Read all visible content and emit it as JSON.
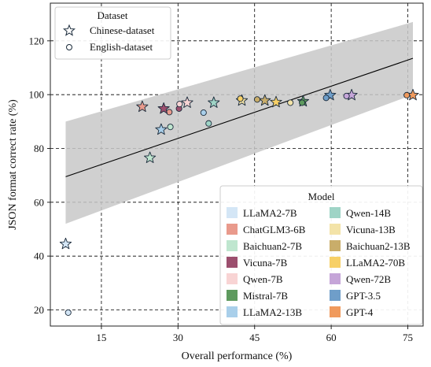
{
  "chart_data": {
    "type": "scatter",
    "xlabel": "Overall performance (%)",
    "ylabel": "JSON format correct rate (%)",
    "xlim": [
      5,
      78
    ],
    "ylim": [
      14,
      134
    ],
    "xticks": [
      15,
      30,
      45,
      60,
      75
    ],
    "yticks": [
      20,
      40,
      60,
      80,
      100,
      120
    ],
    "grid": true,
    "grid_style": "dashed",
    "dataset_legend": {
      "title": "Dataset",
      "placement": "top-left",
      "entries": [
        {
          "label": "Chinese-dataset",
          "marker": "star"
        },
        {
          "label": "English-dataset",
          "marker": "circle"
        }
      ]
    },
    "model_legend": {
      "title": "Model",
      "placement": "bottom-right",
      "columns": 2
    },
    "regression": {
      "line": [
        [
          8,
          69.5
        ],
        [
          76,
          113.5
        ]
      ],
      "band_upper": [
        [
          8,
          90
        ],
        [
          76,
          127
        ]
      ],
      "band_lower": [
        [
          8,
          52
        ],
        [
          76,
          100
        ]
      ],
      "line_color": "#000000",
      "band_color": "#c8c8c8"
    },
    "series": [
      {
        "name": "LLaMA2-7B",
        "color": "#d4e6f6",
        "points": [
          {
            "x": 8,
            "y": 44.5,
            "dataset": "Chinese-dataset"
          },
          {
            "x": 8.5,
            "y": 19,
            "dataset": "English-dataset"
          }
        ]
      },
      {
        "name": "ChatGLM3-6B",
        "color": "#e99a8c",
        "points": [
          {
            "x": 23,
            "y": 95.5,
            "dataset": "Chinese-dataset"
          },
          {
            "x": 28.3,
            "y": 93.5,
            "dataset": "English-dataset"
          }
        ]
      },
      {
        "name": "Baichuan2-7B",
        "color": "#bfe6cf",
        "points": [
          {
            "x": 24.5,
            "y": 76.5,
            "dataset": "Chinese-dataset"
          },
          {
            "x": 28.5,
            "y": 88,
            "dataset": "English-dataset"
          }
        ]
      },
      {
        "name": "Vicuna-7B",
        "color": "#9c4f6e",
        "points": [
          {
            "x": 27.2,
            "y": 94.8,
            "dataset": "Chinese-dataset"
          },
          {
            "x": 30.2,
            "y": 94.8,
            "dataset": "English-dataset"
          }
        ]
      },
      {
        "name": "Qwen-7B",
        "color": "#f8d4d4",
        "points": [
          {
            "x": 31.8,
            "y": 97,
            "dataset": "Chinese-dataset"
          },
          {
            "x": 30.3,
            "y": 96.5,
            "dataset": "English-dataset"
          }
        ]
      },
      {
        "name": "Mistral-7B",
        "color": "#5e9a5e",
        "points": [
          {
            "x": 54.5,
            "y": 97.5,
            "dataset": "Chinese-dataset"
          },
          {
            "x": 54.3,
            "y": 97,
            "dataset": "English-dataset"
          }
        ]
      },
      {
        "name": "LLaMA2-13B",
        "color": "#a9cfea",
        "points": [
          {
            "x": 26.7,
            "y": 87,
            "dataset": "Chinese-dataset"
          },
          {
            "x": 35,
            "y": 93.3,
            "dataset": "English-dataset"
          }
        ]
      },
      {
        "name": "Qwen-14B",
        "color": "#9fd4c6",
        "points": [
          {
            "x": 37,
            "y": 97,
            "dataset": "Chinese-dataset"
          },
          {
            "x": 36,
            "y": 89.3,
            "dataset": "English-dataset"
          }
        ]
      },
      {
        "name": "Vicuna-13B",
        "color": "#f3e3a8",
        "points": [
          {
            "x": 42.5,
            "y": 97.8,
            "dataset": "Chinese-dataset"
          },
          {
            "x": 52,
            "y": 97,
            "dataset": "English-dataset"
          }
        ]
      },
      {
        "name": "Baichuan2-13B",
        "color": "#c9ad6a",
        "points": [
          {
            "x": 47,
            "y": 97.8,
            "dataset": "Chinese-dataset"
          },
          {
            "x": 45.5,
            "y": 98.2,
            "dataset": "English-dataset"
          }
        ]
      },
      {
        "name": "LLaMA2-70B",
        "color": "#f7d067",
        "points": [
          {
            "x": 49.2,
            "y": 97.2,
            "dataset": "Chinese-dataset"
          },
          {
            "x": 42.2,
            "y": 98.5,
            "dataset": "English-dataset"
          }
        ]
      },
      {
        "name": "Qwen-72B",
        "color": "#c5a5d8",
        "points": [
          {
            "x": 64,
            "y": 99.8,
            "dataset": "Chinese-dataset"
          },
          {
            "x": 63,
            "y": 99.5,
            "dataset": "English-dataset"
          }
        ]
      },
      {
        "name": "GPT-3.5",
        "color": "#6f9ec9",
        "points": [
          {
            "x": 59.8,
            "y": 99.8,
            "dataset": "Chinese-dataset"
          },
          {
            "x": 59,
            "y": 98.8,
            "dataset": "English-dataset"
          }
        ]
      },
      {
        "name": "GPT-4",
        "color": "#f09a5d",
        "points": [
          {
            "x": 76,
            "y": 99.8,
            "dataset": "Chinese-dataset"
          },
          {
            "x": 74.8,
            "y": 99.8,
            "dataset": "English-dataset"
          }
        ]
      }
    ]
  }
}
